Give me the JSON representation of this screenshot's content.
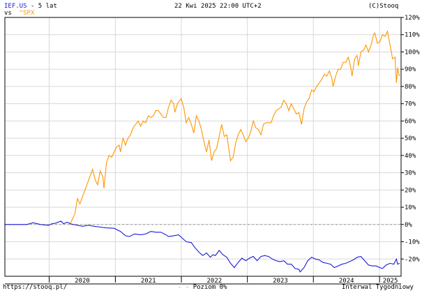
{
  "header": {
    "symbol": "IEF.US",
    "period": " - 5 lat",
    "vs_label": "vs",
    "compare_symbol": "^SPX",
    "datetime": "22 Kwi 2025 22:00 UTC+2",
    "copyright": "(C)Stooq"
  },
  "footer": {
    "url": "https://stooq.pl/",
    "level_label": "Poziom 0%",
    "interval": "Interwal Tygodniowy"
  },
  "colors": {
    "spx": "#ff9600",
    "ief": "#1a1ad8",
    "grid": "#d8d8d8",
    "frame": "#000000"
  },
  "chart_data": {
    "type": "line",
    "x_range": [
      "2019-05-01",
      "2025-04-30"
    ],
    "ylim": [
      -30,
      120
    ],
    "y_ticks": [
      "120%",
      "110%",
      "100%",
      "90%",
      "80%",
      "70%",
      "60%",
      "50%",
      "40%",
      "30%",
      "20%",
      "10%",
      "0%",
      "-10%",
      "-20%"
    ],
    "y_tick_values": [
      120,
      110,
      100,
      90,
      80,
      70,
      60,
      50,
      40,
      30,
      20,
      10,
      0,
      -10,
      -20
    ],
    "x_labels": [
      "2020",
      "2021",
      "2022",
      "2023",
      "2024",
      "2025"
    ],
    "reference_line": 0,
    "grid": true,
    "series": [
      {
        "name": "^SPX",
        "color": "#ff9600",
        "points": [
          [
            "2020-04-24",
            0
          ],
          [
            "2020-05-08",
            3
          ],
          [
            "2020-05-22",
            6
          ],
          [
            "2020-06-05",
            15
          ],
          [
            "2020-06-19",
            12
          ],
          [
            "2020-07-03",
            16
          ],
          [
            "2020-07-17",
            20
          ],
          [
            "2020-07-31",
            24
          ],
          [
            "2020-08-14",
            28
          ],
          [
            "2020-08-28",
            32
          ],
          [
            "2020-09-11",
            26
          ],
          [
            "2020-09-25",
            23
          ],
          [
            "2020-10-09",
            31
          ],
          [
            "2020-10-23",
            28
          ],
          [
            "2020-10-30",
            21
          ],
          [
            "2020-11-13",
            36
          ],
          [
            "2020-11-27",
            40
          ],
          [
            "2020-12-11",
            39
          ],
          [
            "2020-12-25",
            42
          ],
          [
            "2021-01-08",
            45
          ],
          [
            "2021-01-22",
            46
          ],
          [
            "2021-01-29",
            42
          ],
          [
            "2021-02-12",
            50
          ],
          [
            "2021-02-26",
            46
          ],
          [
            "2021-03-12",
            50
          ],
          [
            "2021-03-26",
            52
          ],
          [
            "2021-04-09",
            56
          ],
          [
            "2021-04-23",
            58
          ],
          [
            "2021-05-07",
            60
          ],
          [
            "2021-05-21",
            57
          ],
          [
            "2021-06-04",
            60
          ],
          [
            "2021-06-18",
            59
          ],
          [
            "2021-07-02",
            63
          ],
          [
            "2021-07-16",
            62
          ],
          [
            "2021-07-30",
            63
          ],
          [
            "2021-08-13",
            66
          ],
          [
            "2021-08-27",
            66
          ],
          [
            "2021-09-10",
            64
          ],
          [
            "2021-09-24",
            62
          ],
          [
            "2021-10-08",
            62
          ],
          [
            "2021-10-22",
            68
          ],
          [
            "2021-11-05",
            72
          ],
          [
            "2021-11-19",
            70
          ],
          [
            "2021-11-26",
            65
          ],
          [
            "2021-12-10",
            70
          ],
          [
            "2021-12-31",
            73
          ],
          [
            "2022-01-14",
            68
          ],
          [
            "2022-01-28",
            59
          ],
          [
            "2022-02-11",
            62
          ],
          [
            "2022-02-25",
            58
          ],
          [
            "2022-03-11",
            53
          ],
          [
            "2022-03-25",
            63
          ],
          [
            "2022-04-08",
            60
          ],
          [
            "2022-04-22",
            55
          ],
          [
            "2022-05-06",
            48
          ],
          [
            "2022-05-20",
            42
          ],
          [
            "2022-06-03",
            49
          ],
          [
            "2022-06-17",
            37
          ],
          [
            "2022-07-01",
            42
          ],
          [
            "2022-07-15",
            44
          ],
          [
            "2022-07-29",
            51
          ],
          [
            "2022-08-12",
            58
          ],
          [
            "2022-08-26",
            51
          ],
          [
            "2022-09-09",
            52
          ],
          [
            "2022-09-23",
            42
          ],
          [
            "2022-09-30",
            37
          ],
          [
            "2022-10-14",
            39
          ],
          [
            "2022-10-28",
            47
          ],
          [
            "2022-11-11",
            52
          ],
          [
            "2022-11-25",
            55
          ],
          [
            "2022-12-09",
            52
          ],
          [
            "2022-12-23",
            48
          ],
          [
            "2023-01-06",
            50
          ],
          [
            "2023-01-20",
            54
          ],
          [
            "2023-02-03",
            60
          ],
          [
            "2023-02-17",
            56
          ],
          [
            "2023-03-03",
            55
          ],
          [
            "2023-03-17",
            52
          ],
          [
            "2023-03-31",
            58
          ],
          [
            "2023-04-14",
            59
          ],
          [
            "2023-04-28",
            59
          ],
          [
            "2023-05-12",
            59
          ],
          [
            "2023-05-26",
            63
          ],
          [
            "2023-06-09",
            66
          ],
          [
            "2023-06-23",
            67
          ],
          [
            "2023-07-07",
            68
          ],
          [
            "2023-07-21",
            72
          ],
          [
            "2023-08-04",
            70
          ],
          [
            "2023-08-18",
            66
          ],
          [
            "2023-09-01",
            70
          ],
          [
            "2023-09-15",
            67
          ],
          [
            "2023-09-29",
            64
          ],
          [
            "2023-10-13",
            65
          ],
          [
            "2023-10-27",
            58
          ],
          [
            "2023-11-10",
            67
          ],
          [
            "2023-11-24",
            71
          ],
          [
            "2023-12-08",
            73
          ],
          [
            "2023-12-22",
            78
          ],
          [
            "2024-01-05",
            77
          ],
          [
            "2024-01-19",
            80
          ],
          [
            "2024-02-02",
            82
          ],
          [
            "2024-02-16",
            84
          ],
          [
            "2024-03-01",
            87
          ],
          [
            "2024-03-15",
            86
          ],
          [
            "2024-03-29",
            89
          ],
          [
            "2024-04-12",
            85
          ],
          [
            "2024-04-19",
            80
          ],
          [
            "2024-05-03",
            86
          ],
          [
            "2024-05-17",
            90
          ],
          [
            "2024-05-31",
            90
          ],
          [
            "2024-06-14",
            94
          ],
          [
            "2024-06-28",
            94
          ],
          [
            "2024-07-12",
            97
          ],
          [
            "2024-07-26",
            91
          ],
          [
            "2024-08-02",
            86
          ],
          [
            "2024-08-16",
            96
          ],
          [
            "2024-08-30",
            98
          ],
          [
            "2024-09-06",
            92
          ],
          [
            "2024-09-20",
            100
          ],
          [
            "2024-10-04",
            101
          ],
          [
            "2024-10-18",
            104
          ],
          [
            "2024-11-01",
            100
          ],
          [
            "2024-11-15",
            104
          ],
          [
            "2024-11-29",
            110
          ],
          [
            "2024-12-06",
            111
          ],
          [
            "2024-12-20",
            105
          ],
          [
            "2025-01-03",
            106
          ],
          [
            "2025-01-17",
            110
          ],
          [
            "2025-01-31",
            109
          ],
          [
            "2025-02-14",
            112
          ],
          [
            "2025-02-21",
            108
          ],
          [
            "2025-03-07",
            100
          ],
          [
            "2025-03-14",
            96
          ],
          [
            "2025-03-28",
            97
          ],
          [
            "2025-04-04",
            82
          ],
          [
            "2025-04-11",
            91
          ],
          [
            "2025-04-18",
            87
          ],
          [
            "2025-04-22",
            86
          ]
        ]
      },
      {
        "name": "IEF.US",
        "color": "#1a1ad8",
        "points": [
          [
            "2019-05-01",
            0
          ],
          [
            "2019-07-12",
            0
          ],
          [
            "2019-08-30",
            0
          ],
          [
            "2019-10-04",
            1
          ],
          [
            "2019-11-15",
            0
          ],
          [
            "2019-12-27",
            -0.5
          ],
          [
            "2020-01-17",
            0.5
          ],
          [
            "2020-02-07",
            0.8
          ],
          [
            "2020-03-06",
            2
          ],
          [
            "2020-03-20",
            0.5
          ],
          [
            "2020-04-10",
            1.3
          ],
          [
            "2020-05-01",
            0.3
          ],
          [
            "2020-06-05",
            -0.5
          ],
          [
            "2020-07-03",
            -1
          ],
          [
            "2020-08-07",
            -0.5
          ],
          [
            "2020-09-04",
            -1
          ],
          [
            "2020-10-09",
            -1.5
          ],
          [
            "2020-11-13",
            -2
          ],
          [
            "2020-12-25",
            -2.2
          ],
          [
            "2021-01-29",
            -4
          ],
          [
            "2021-02-26",
            -6.5
          ],
          [
            "2021-03-19",
            -7
          ],
          [
            "2021-04-16",
            -5.5
          ],
          [
            "2021-05-21",
            -6
          ],
          [
            "2021-06-18",
            -5.5
          ],
          [
            "2021-07-16",
            -4
          ],
          [
            "2021-08-13",
            -4.5
          ],
          [
            "2021-09-10",
            -4.5
          ],
          [
            "2021-10-08",
            -6
          ],
          [
            "2021-10-22",
            -7
          ],
          [
            "2021-11-19",
            -6.5
          ],
          [
            "2021-12-17",
            -6
          ],
          [
            "2022-01-07",
            -8
          ],
          [
            "2022-01-28",
            -10
          ],
          [
            "2022-02-25",
            -10.5
          ],
          [
            "2022-03-18",
            -13.5
          ],
          [
            "2022-04-08",
            -16
          ],
          [
            "2022-04-29",
            -18
          ],
          [
            "2022-05-20",
            -16.5
          ],
          [
            "2022-06-10",
            -19
          ],
          [
            "2022-06-24",
            -17.5
          ],
          [
            "2022-07-08",
            -18
          ],
          [
            "2022-07-29",
            -15
          ],
          [
            "2022-08-19",
            -17.5
          ],
          [
            "2022-09-09",
            -19
          ],
          [
            "2022-09-30",
            -22.5
          ],
          [
            "2022-10-21",
            -25
          ],
          [
            "2022-11-11",
            -22
          ],
          [
            "2022-12-02",
            -19.5
          ],
          [
            "2022-12-23",
            -21
          ],
          [
            "2023-01-13",
            -19.5
          ],
          [
            "2023-02-03",
            -18.5
          ],
          [
            "2023-02-24",
            -21
          ],
          [
            "2023-03-17",
            -18.5
          ],
          [
            "2023-04-07",
            -18
          ],
          [
            "2023-04-28",
            -18.5
          ],
          [
            "2023-05-19",
            -20
          ],
          [
            "2023-06-09",
            -21
          ],
          [
            "2023-06-30",
            -21.5
          ],
          [
            "2023-07-21",
            -21
          ],
          [
            "2023-08-11",
            -23
          ],
          [
            "2023-09-01",
            -23
          ],
          [
            "2023-09-22",
            -25.5
          ],
          [
            "2023-10-13",
            -26
          ],
          [
            "2023-10-20",
            -27.5
          ],
          [
            "2023-11-10",
            -25
          ],
          [
            "2023-12-01",
            -21
          ],
          [
            "2023-12-22",
            -19
          ],
          [
            "2024-01-12",
            -20
          ],
          [
            "2024-02-02",
            -20.5
          ],
          [
            "2024-02-23",
            -22
          ],
          [
            "2024-03-15",
            -22.5
          ],
          [
            "2024-04-05",
            -23
          ],
          [
            "2024-04-26",
            -25
          ],
          [
            "2024-05-17",
            -24
          ],
          [
            "2024-06-07",
            -23
          ],
          [
            "2024-06-28",
            -22.5
          ],
          [
            "2024-07-19",
            -21.5
          ],
          [
            "2024-08-09",
            -20.5
          ],
          [
            "2024-08-30",
            -19
          ],
          [
            "2024-09-20",
            -18.5
          ],
          [
            "2024-10-11",
            -21
          ],
          [
            "2024-11-01",
            -23.5
          ],
          [
            "2024-11-22",
            -24
          ],
          [
            "2024-12-13",
            -24
          ],
          [
            "2025-01-03",
            -25
          ],
          [
            "2025-01-17",
            -25.5
          ],
          [
            "2025-02-07",
            -23.5
          ],
          [
            "2025-02-28",
            -22.5
          ],
          [
            "2025-03-21",
            -23
          ],
          [
            "2025-04-04",
            -20
          ],
          [
            "2025-04-11",
            -23
          ],
          [
            "2025-04-22",
            -22.5
          ]
        ]
      }
    ]
  }
}
